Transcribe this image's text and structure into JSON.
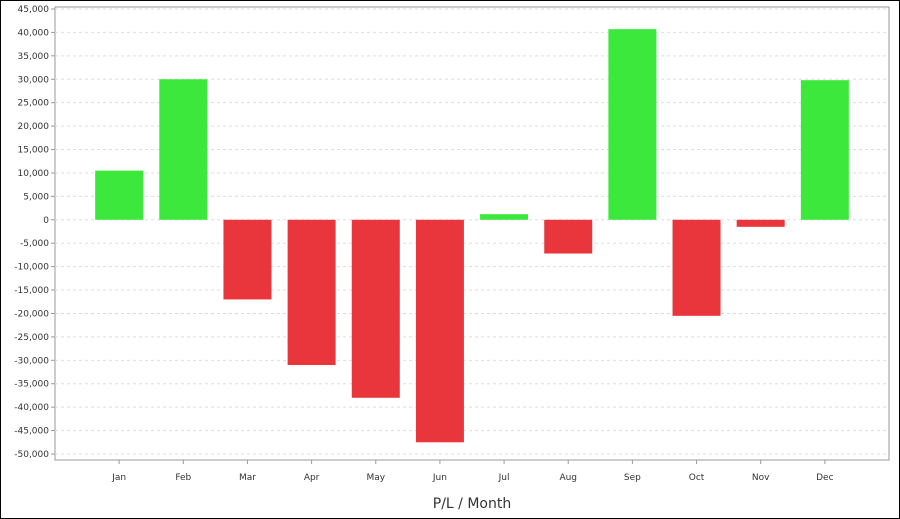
{
  "chart_data": {
    "type": "bar",
    "title": "",
    "xlabel": "P/L / Month",
    "ylabel": "",
    "categories": [
      "Jan",
      "Feb",
      "Mar",
      "Apr",
      "May",
      "Jun",
      "Jul",
      "Aug",
      "Sep",
      "Oct",
      "Nov",
      "Dec"
    ],
    "values": [
      10500,
      30000,
      -17000,
      -31000,
      -38000,
      -47500,
      1200,
      -7200,
      40700,
      -20500,
      -1500,
      29800
    ],
    "ylim": [
      -50000,
      45000
    ],
    "y_ticks": [
      45000,
      40000,
      35000,
      30000,
      25000,
      20000,
      15000,
      10000,
      5000,
      0,
      -5000,
      -10000,
      -15000,
      -20000,
      -25000,
      -30000,
      -35000,
      -40000,
      -45000,
      -50000
    ],
    "y_tick_labels": [
      "45,000",
      "40,000",
      "35,000",
      "30,000",
      "25,000",
      "20,000",
      "15,000",
      "10,000",
      "5,000",
      "0",
      "-5,000",
      "-10,000",
      "-15,000",
      "-20,000",
      "-25,000",
      "-30,000",
      "-35,000",
      "-40,000",
      "-45,000",
      "-50,000"
    ],
    "grid": true,
    "legend": "none",
    "colors": {
      "positive": "#3de83d",
      "negative": "#e8363c",
      "grid": "#dddddd",
      "axis": "#999999"
    }
  }
}
